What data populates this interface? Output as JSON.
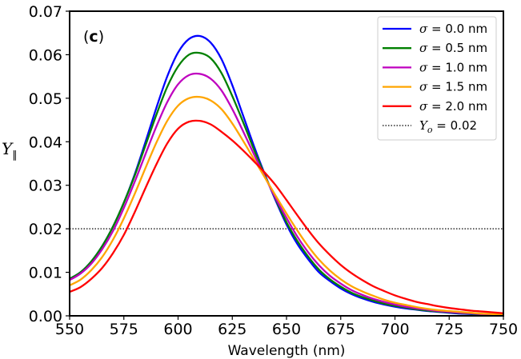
{
  "chart_data": {
    "type": "line",
    "panel_label_open": "(",
    "panel_label_bold": "c",
    "panel_label_close": ")",
    "xlabel": "Wavelength (nm)",
    "ylabel": "Y",
    "ylabel_subscript": "∥",
    "xlim": [
      550,
      750
    ],
    "ylim": [
      0.0,
      0.07
    ],
    "xticks": [
      550,
      575,
      600,
      625,
      650,
      675,
      700,
      725,
      750
    ],
    "xtick_labels": [
      "550",
      "575",
      "600",
      "625",
      "650",
      "675",
      "700",
      "725",
      "750"
    ],
    "yticks": [
      0.0,
      0.01,
      0.02,
      0.03,
      0.04,
      0.05,
      0.06,
      0.07
    ],
    "ytick_labels": [
      "0.00",
      "0.01",
      "0.02",
      "0.03",
      "0.04",
      "0.05",
      "0.06",
      "0.07"
    ],
    "legend_position": "top-right",
    "x": [
      550,
      555,
      560,
      565,
      570,
      575,
      580,
      585,
      590,
      595,
      600,
      605,
      610,
      615,
      620,
      625,
      630,
      635,
      640,
      645,
      650,
      655,
      660,
      665,
      670,
      675,
      680,
      685,
      690,
      695,
      700,
      705,
      710,
      715,
      720,
      725,
      730,
      735,
      740,
      745,
      750
    ],
    "series": [
      {
        "name": "σ = 0.0 nm",
        "color": "#0000ff",
        "values": [
          0.0085,
          0.01,
          0.0125,
          0.016,
          0.0205,
          0.026,
          0.0325,
          0.04,
          0.0478,
          0.055,
          0.0605,
          0.0636,
          0.0643,
          0.0628,
          0.059,
          0.053,
          0.046,
          0.039,
          0.0325,
          0.0265,
          0.021,
          0.0165,
          0.013,
          0.01,
          0.008,
          0.0063,
          0.005,
          0.004,
          0.0032,
          0.0026,
          0.0021,
          0.0017,
          0.0014,
          0.0011,
          0.0009,
          0.0007,
          0.0005,
          0.0004,
          0.0003,
          0.0002,
          0.0001
        ]
      },
      {
        "name": "σ = 0.5 nm",
        "color": "#008000",
        "values": [
          0.0085,
          0.01,
          0.0125,
          0.016,
          0.0205,
          0.026,
          0.0322,
          0.0392,
          0.0462,
          0.0526,
          0.0573,
          0.06,
          0.0604,
          0.0592,
          0.0558,
          0.0505,
          0.0445,
          0.0382,
          0.0323,
          0.0268,
          0.0215,
          0.0172,
          0.0136,
          0.0106,
          0.0084,
          0.0067,
          0.0053,
          0.0043,
          0.0035,
          0.0028,
          0.0023,
          0.0019,
          0.0015,
          0.0012,
          0.001,
          0.0008,
          0.0006,
          0.0005,
          0.0004,
          0.0003,
          0.0002
        ]
      },
      {
        "name": "σ = 1.0 nm",
        "color": "#bf00bf",
        "values": [
          0.0082,
          0.0097,
          0.012,
          0.0153,
          0.0195,
          0.0248,
          0.0308,
          0.0372,
          0.0435,
          0.0491,
          0.0532,
          0.0553,
          0.0556,
          0.0545,
          0.0518,
          0.0475,
          0.0424,
          0.0371,
          0.032,
          0.027,
          0.0225,
          0.0182,
          0.0146,
          0.0116,
          0.0092,
          0.0074,
          0.0059,
          0.0048,
          0.0039,
          0.0032,
          0.0026,
          0.0021,
          0.0017,
          0.0014,
          0.0011,
          0.0009,
          0.0007,
          0.0006,
          0.0004,
          0.0003,
          0.0002
        ]
      },
      {
        "name": "σ = 1.5 nm",
        "color": "#ffa500",
        "values": [
          0.007,
          0.0083,
          0.0105,
          0.0135,
          0.0175,
          0.0224,
          0.028,
          0.034,
          0.0398,
          0.0448,
          0.0483,
          0.05,
          0.0503,
          0.0495,
          0.0475,
          0.0442,
          0.0402,
          0.036,
          0.0318,
          0.0276,
          0.0235,
          0.0196,
          0.016,
          0.0129,
          0.0104,
          0.0084,
          0.0068,
          0.0056,
          0.0046,
          0.0037,
          0.003,
          0.0025,
          0.002,
          0.0016,
          0.0013,
          0.0011,
          0.0009,
          0.0007,
          0.0005,
          0.0004,
          0.0003
        ]
      },
      {
        "name": "σ = 2.0 nm",
        "color": "#ff0000",
        "values": [
          0.0055,
          0.0066,
          0.0085,
          0.011,
          0.0144,
          0.0186,
          0.0238,
          0.0294,
          0.0348,
          0.0396,
          0.043,
          0.0446,
          0.0448,
          0.044,
          0.0423,
          0.0403,
          0.038,
          0.0355,
          0.0329,
          0.03,
          0.0266,
          0.0231,
          0.0197,
          0.0166,
          0.014,
          0.0117,
          0.0098,
          0.0082,
          0.0068,
          0.0057,
          0.0047,
          0.0039,
          0.0032,
          0.0027,
          0.0022,
          0.0018,
          0.0015,
          0.0012,
          0.001,
          0.0008,
          0.0006
        ]
      }
    ],
    "reference_line": {
      "name": "Y_o = 0.02",
      "label_main": "Y",
      "label_sub": "o",
      "label_rest": " = 0.02",
      "value": 0.02,
      "color": "#000000",
      "style": "dotted"
    }
  }
}
